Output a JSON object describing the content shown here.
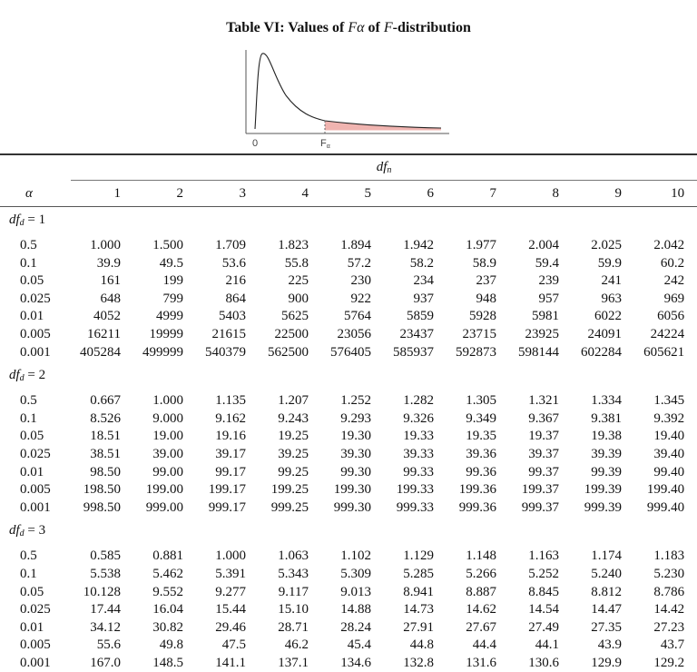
{
  "title": {
    "prefix": "Table VI: Values of ",
    "f_alpha": "Fα",
    "middle": " of ",
    "f": "F",
    "suffix": "-distribution"
  },
  "graph": {
    "zero_label": "0",
    "f_alpha_label": "F",
    "f_alpha_sub": "α",
    "shade_color": "#f0b4b0"
  },
  "header": {
    "dfn_label": "df",
    "dfn_sub": "n",
    "alpha_label": "α",
    "columns": [
      "1",
      "2",
      "3",
      "4",
      "5",
      "6",
      "7",
      "8",
      "9",
      "10"
    ]
  },
  "groups": [
    {
      "label": "df",
      "sub": "d",
      "eq": " = 1",
      "rows": [
        {
          "alpha": "0.5",
          "values": [
            "1.000",
            "1.500",
            "1.709",
            "1.823",
            "1.894",
            "1.942",
            "1.977",
            "2.004",
            "2.025",
            "2.042"
          ]
        },
        {
          "alpha": "0.1",
          "values": [
            "39.9",
            "49.5",
            "53.6",
            "55.8",
            "57.2",
            "58.2",
            "58.9",
            "59.4",
            "59.9",
            "60.2"
          ]
        },
        {
          "alpha": "0.05",
          "values": [
            "161",
            "199",
            "216",
            "225",
            "230",
            "234",
            "237",
            "239",
            "241",
            "242"
          ]
        },
        {
          "alpha": "0.025",
          "values": [
            "648",
            "799",
            "864",
            "900",
            "922",
            "937",
            "948",
            "957",
            "963",
            "969"
          ]
        },
        {
          "alpha": "0.01",
          "values": [
            "4052",
            "4999",
            "5403",
            "5625",
            "5764",
            "5859",
            "5928",
            "5981",
            "6022",
            "6056"
          ]
        },
        {
          "alpha": "0.005",
          "values": [
            "16211",
            "19999",
            "21615",
            "22500",
            "23056",
            "23437",
            "23715",
            "23925",
            "24091",
            "24224"
          ]
        },
        {
          "alpha": "0.001",
          "values": [
            "405284",
            "499999",
            "540379",
            "562500",
            "576405",
            "585937",
            "592873",
            "598144",
            "602284",
            "605621"
          ]
        }
      ]
    },
    {
      "label": "df",
      "sub": "d",
      "eq": " = 2",
      "rows": [
        {
          "alpha": "0.5",
          "values": [
            "0.667",
            "1.000",
            "1.135",
            "1.207",
            "1.252",
            "1.282",
            "1.305",
            "1.321",
            "1.334",
            "1.345"
          ]
        },
        {
          "alpha": "0.1",
          "values": [
            "8.526",
            "9.000",
            "9.162",
            "9.243",
            "9.293",
            "9.326",
            "9.349",
            "9.367",
            "9.381",
            "9.392"
          ]
        },
        {
          "alpha": "0.05",
          "values": [
            "18.51",
            "19.00",
            "19.16",
            "19.25",
            "19.30",
            "19.33",
            "19.35",
            "19.37",
            "19.38",
            "19.40"
          ]
        },
        {
          "alpha": "0.025",
          "values": [
            "38.51",
            "39.00",
            "39.17",
            "39.25",
            "39.30",
            "39.33",
            "39.36",
            "39.37",
            "39.39",
            "39.40"
          ]
        },
        {
          "alpha": "0.01",
          "values": [
            "98.50",
            "99.00",
            "99.17",
            "99.25",
            "99.30",
            "99.33",
            "99.36",
            "99.37",
            "99.39",
            "99.40"
          ]
        },
        {
          "alpha": "0.005",
          "values": [
            "198.50",
            "199.00",
            "199.17",
            "199.25",
            "199.30",
            "199.33",
            "199.36",
            "199.37",
            "199.39",
            "199.40"
          ]
        },
        {
          "alpha": "0.001",
          "values": [
            "998.50",
            "999.00",
            "999.17",
            "999.25",
            "999.30",
            "999.33",
            "999.36",
            "999.37",
            "999.39",
            "999.40"
          ]
        }
      ]
    },
    {
      "label": "df",
      "sub": "d",
      "eq": " = 3",
      "rows": [
        {
          "alpha": "0.5",
          "values": [
            "0.585",
            "0.881",
            "1.000",
            "1.063",
            "1.102",
            "1.129",
            "1.148",
            "1.163",
            "1.174",
            "1.183"
          ]
        },
        {
          "alpha": "0.1",
          "values": [
            "5.538",
            "5.462",
            "5.391",
            "5.343",
            "5.309",
            "5.285",
            "5.266",
            "5.252",
            "5.240",
            "5.230"
          ]
        },
        {
          "alpha": "0.05",
          "values": [
            "10.128",
            "9.552",
            "9.277",
            "9.117",
            "9.013",
            "8.941",
            "8.887",
            "8.845",
            "8.812",
            "8.786"
          ]
        },
        {
          "alpha": "0.025",
          "values": [
            "17.44",
            "16.04",
            "15.44",
            "15.10",
            "14.88",
            "14.73",
            "14.62",
            "14.54",
            "14.47",
            "14.42"
          ]
        },
        {
          "alpha": "0.01",
          "values": [
            "34.12",
            "30.82",
            "29.46",
            "28.71",
            "28.24",
            "27.91",
            "27.67",
            "27.49",
            "27.35",
            "27.23"
          ]
        },
        {
          "alpha": "0.005",
          "values": [
            "55.6",
            "49.8",
            "47.5",
            "46.2",
            "45.4",
            "44.8",
            "44.4",
            "44.1",
            "43.9",
            "43.7"
          ]
        },
        {
          "alpha": "0.001",
          "values": [
            "167.0",
            "148.5",
            "141.1",
            "137.1",
            "134.6",
            "132.8",
            "131.6",
            "130.6",
            "129.9",
            "129.2"
          ]
        }
      ]
    }
  ]
}
